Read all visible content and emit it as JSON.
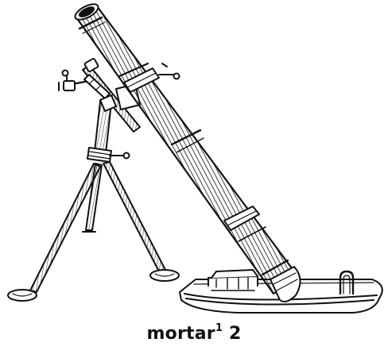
{
  "caption": {
    "word": "mortar",
    "superscript": "1",
    "sense_number": "2"
  },
  "colors": {
    "ink": "#111111",
    "paper": "#ffffff"
  }
}
